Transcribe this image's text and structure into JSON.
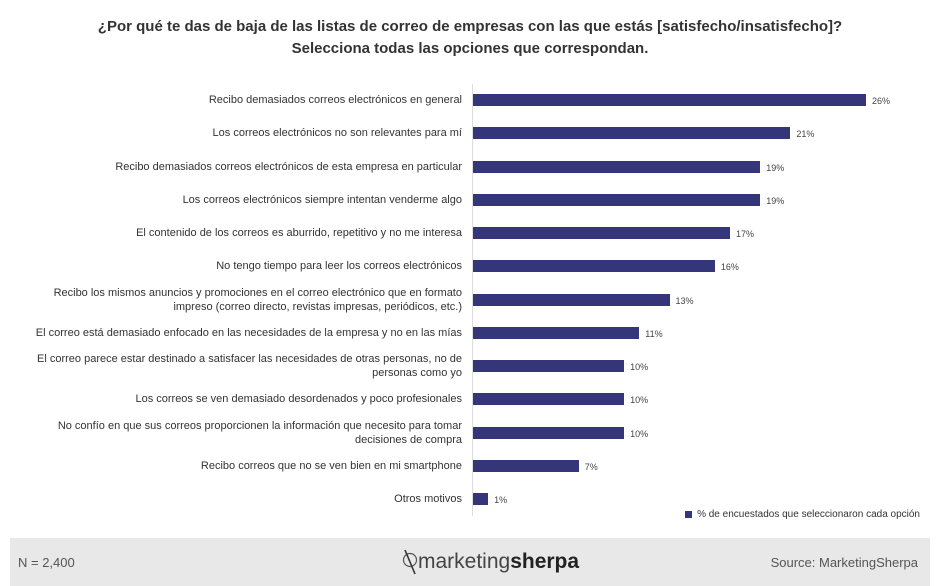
{
  "chart_data": {
    "type": "bar",
    "orientation": "horizontal",
    "title": "¿Por qué te das de baja de las listas de correo de empresas con las que estás [satisfecho/insatisfecho]?\nSelecciona todas las opciones que correspondan.",
    "categories": [
      "Recibo demasiados correos electrónicos en general",
      "Los correos electrónicos no son relevantes para mí",
      "Recibo demasiados correos electrónicos de esta empresa en particular",
      "Los correos electrónicos siempre intentan venderme algo",
      "El contenido de los correos es aburrido, repetitivo y no me interesa",
      "No tengo tiempo para leer los correos electrónicos",
      "Recibo los mismos anuncios y promociones en el correo electrónico que en formato\nimpreso (correo directo, revistas impresas, periódicos, etc.)",
      "El correo está demasiado enfocado en las necesidades de la empresa y no en las mías",
      "El correo parece estar destinado a satisfacer las necesidades de otras personas, no de\npersonas como yo",
      "Los correos se ven demasiado desordenados y poco profesionales",
      "No confío en que sus correos proporcionen la información que necesito para tomar\ndecisiones de compra",
      "Recibo correos que no se ven bien en mi smartphone",
      "Otros motivos"
    ],
    "values": [
      26,
      21,
      19,
      19,
      17,
      16,
      13,
      11,
      10,
      10,
      10,
      7,
      1
    ],
    "value_labels": [
      "26%",
      "21%",
      "19%",
      "19%",
      "17%",
      "16%",
      "13%",
      "11%",
      "10%",
      "10%",
      "10%",
      "7%",
      "1%"
    ],
    "series_name": "% de encuestados que seleccionaron cada opción",
    "xlim": [
      0,
      26
    ],
    "legend_position": "bottom-right",
    "grid": false,
    "bar_color": "#35357a"
  },
  "footer": {
    "n": "N = 2,400",
    "logo": "marketingsherpa",
    "source": "Source: MarketingSherpa"
  }
}
